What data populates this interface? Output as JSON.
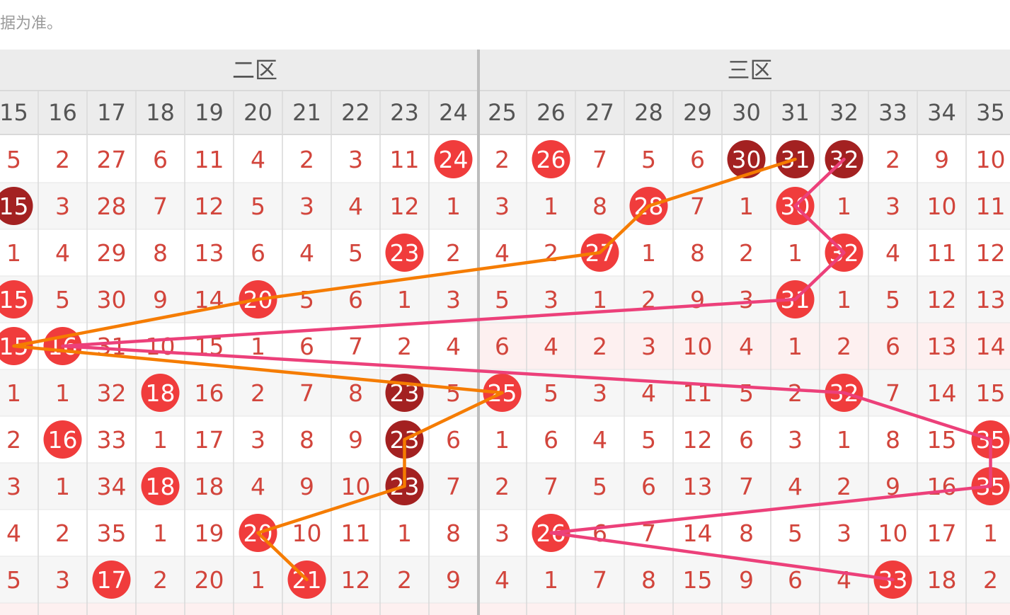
{
  "notice": "据为准。",
  "zones": [
    {
      "label": "二区"
    },
    {
      "label": "三区"
    }
  ],
  "columns": [
    "15",
    "16",
    "17",
    "18",
    "19",
    "20",
    "21",
    "22",
    "23",
    "24",
    "25",
    "26",
    "27",
    "28",
    "29",
    "30",
    "31",
    "32",
    "33",
    "34",
    "35"
  ],
  "rows": [
    [
      "5",
      "2",
      "27",
      "6",
      "11",
      "4",
      "2",
      "3",
      "11",
      "24",
      "2",
      "26",
      "7",
      "5",
      "6",
      "30",
      "31",
      "32",
      "2",
      "9",
      "10"
    ],
    [
      "15",
      "3",
      "28",
      "7",
      "12",
      "5",
      "3",
      "4",
      "12",
      "1",
      "3",
      "1",
      "8",
      "28",
      "7",
      "1",
      "30",
      "1",
      "3",
      "10",
      "11"
    ],
    [
      "1",
      "4",
      "29",
      "8",
      "13",
      "6",
      "4",
      "5",
      "23",
      "2",
      "4",
      "2",
      "27",
      "1",
      "8",
      "2",
      "1",
      "32",
      "4",
      "11",
      "12"
    ],
    [
      "15",
      "5",
      "30",
      "9",
      "14",
      "20",
      "5",
      "6",
      "1",
      "3",
      "5",
      "3",
      "1",
      "2",
      "9",
      "3",
      "31",
      "1",
      "5",
      "12",
      "13"
    ],
    [
      "15",
      "16",
      "31",
      "10",
      "15",
      "1",
      "6",
      "7",
      "2",
      "4",
      "6",
      "4",
      "2",
      "3",
      "10",
      "4",
      "1",
      "2",
      "6",
      "13",
      "14"
    ],
    [
      "1",
      "1",
      "32",
      "18",
      "16",
      "2",
      "7",
      "8",
      "23",
      "5",
      "25",
      "5",
      "3",
      "4",
      "11",
      "5",
      "2",
      "32",
      "7",
      "14",
      "15"
    ],
    [
      "2",
      "16",
      "33",
      "1",
      "17",
      "3",
      "8",
      "9",
      "23",
      "6",
      "1",
      "6",
      "4",
      "5",
      "12",
      "6",
      "3",
      "1",
      "8",
      "15",
      "35"
    ],
    [
      "3",
      "1",
      "34",
      "18",
      "18",
      "4",
      "9",
      "10",
      "23",
      "7",
      "2",
      "7",
      "5",
      "6",
      "13",
      "7",
      "4",
      "2",
      "9",
      "16",
      "35"
    ],
    [
      "4",
      "2",
      "35",
      "1",
      "19",
      "20",
      "10",
      "11",
      "1",
      "8",
      "3",
      "26",
      "6",
      "7",
      "14",
      "8",
      "5",
      "3",
      "10",
      "17",
      "1"
    ],
    [
      "5",
      "3",
      "17",
      "2",
      "20",
      "1",
      "21",
      "12",
      "2",
      "9",
      "4",
      "1",
      "7",
      "8",
      "15",
      "9",
      "6",
      "4",
      "33",
      "18",
      "2"
    ]
  ],
  "balls": [
    {
      "row": 0,
      "col": 9,
      "tone": "red"
    },
    {
      "row": 0,
      "col": 11,
      "tone": "red"
    },
    {
      "row": 0,
      "col": 15,
      "tone": "dark"
    },
    {
      "row": 0,
      "col": 16,
      "tone": "dark"
    },
    {
      "row": 0,
      "col": 17,
      "tone": "dark"
    },
    {
      "row": 1,
      "col": 0,
      "tone": "dark"
    },
    {
      "row": 1,
      "col": 13,
      "tone": "red"
    },
    {
      "row": 1,
      "col": 16,
      "tone": "red"
    },
    {
      "row": 2,
      "col": 8,
      "tone": "red"
    },
    {
      "row": 2,
      "col": 12,
      "tone": "red"
    },
    {
      "row": 2,
      "col": 17,
      "tone": "red"
    },
    {
      "row": 3,
      "col": 0,
      "tone": "red"
    },
    {
      "row": 3,
      "col": 5,
      "tone": "red"
    },
    {
      "row": 3,
      "col": 16,
      "tone": "red"
    },
    {
      "row": 4,
      "col": 0,
      "tone": "red"
    },
    {
      "row": 4,
      "col": 1,
      "tone": "red"
    },
    {
      "row": 5,
      "col": 3,
      "tone": "red"
    },
    {
      "row": 5,
      "col": 8,
      "tone": "dark"
    },
    {
      "row": 5,
      "col": 10,
      "tone": "red"
    },
    {
      "row": 5,
      "col": 17,
      "tone": "red"
    },
    {
      "row": 6,
      "col": 1,
      "tone": "red"
    },
    {
      "row": 6,
      "col": 8,
      "tone": "dark"
    },
    {
      "row": 6,
      "col": 20,
      "tone": "red"
    },
    {
      "row": 7,
      "col": 3,
      "tone": "red"
    },
    {
      "row": 7,
      "col": 8,
      "tone": "dark"
    },
    {
      "row": 7,
      "col": 20,
      "tone": "red"
    },
    {
      "row": 8,
      "col": 5,
      "tone": "red"
    },
    {
      "row": 8,
      "col": 11,
      "tone": "red"
    },
    {
      "row": 9,
      "col": 2,
      "tone": "red"
    },
    {
      "row": 9,
      "col": 6,
      "tone": "red"
    },
    {
      "row": 9,
      "col": 18,
      "tone": "red"
    }
  ],
  "trend_lines": [
    {
      "color": "#f57c00",
      "points": [
        [
          0,
          16
        ],
        [
          1,
          13
        ],
        [
          2,
          12
        ],
        [
          3,
          5
        ],
        [
          4,
          0
        ],
        [
          5,
          10
        ],
        [
          6,
          8
        ],
        [
          7,
          8
        ],
        [
          8,
          5
        ],
        [
          9,
          6
        ]
      ]
    },
    {
      "color": "#ec407a",
      "points": [
        [
          0,
          17
        ],
        [
          1,
          16
        ],
        [
          2,
          17
        ],
        [
          3,
          16
        ],
        [
          4,
          1
        ],
        [
          5,
          17
        ],
        [
          6,
          20
        ],
        [
          7,
          20
        ],
        [
          8,
          11
        ],
        [
          9,
          18
        ]
      ]
    }
  ],
  "colors": {
    "ball_red": "#f03c3c",
    "ball_dark": "#a32121",
    "cell_text": "#d2453c",
    "header_bg": "#ececec",
    "grid_line": "#d9d9d9",
    "row_alt": "#f6f6f6",
    "row_highlight": "#fdf0f0"
  }
}
